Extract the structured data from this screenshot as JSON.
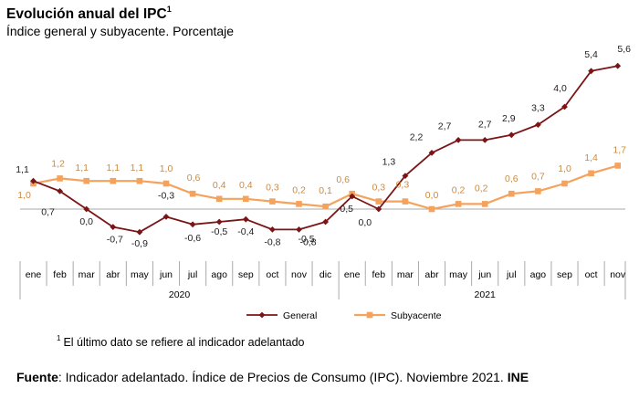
{
  "header": {
    "title": "Evolución anual del IPC",
    "title_sup": "1",
    "subtitle": "Índice general y subyacente. Porcentaje"
  },
  "footnote": {
    "sup": "1",
    "text": "El último dato se refiere al indicador adelantado"
  },
  "source": {
    "label": "Fuente",
    "text": ": Indicador adelantado. Índice de Precios de Consumo (IPC). Noviembre 2021. ",
    "org": "INE"
  },
  "chart_data": {
    "type": "line",
    "categories": [
      "ene",
      "feb",
      "mar",
      "abr",
      "may",
      "jun",
      "jul",
      "ago",
      "sep",
      "oct",
      "nov",
      "dic",
      "ene",
      "feb",
      "mar",
      "abr",
      "may",
      "jun",
      "jul",
      "ago",
      "sep",
      "oct",
      "nov"
    ],
    "years": [
      {
        "label": "2020",
        "start": 0,
        "end": 11
      },
      {
        "label": "2021",
        "start": 12,
        "end": 22
      }
    ],
    "series": [
      {
        "name": "General",
        "color": "#7b1416",
        "marker": "diamond",
        "values": [
          1.1,
          0.7,
          0.0,
          -0.7,
          -0.9,
          -0.3,
          -0.6,
          -0.5,
          -0.4,
          -0.8,
          -0.8,
          -0.5,
          0.5,
          0.0,
          1.3,
          2.2,
          2.7,
          2.7,
          2.9,
          3.3,
          4.0,
          5.4,
          5.6
        ],
        "labels": [
          "1,1",
          "0,7",
          "0,0",
          "-0,7",
          "-0,9",
          "-0,3",
          "-0,6",
          "-0,5",
          "-0,4",
          "-0,8",
          "-0,8",
          "-0,5",
          "0,5",
          "0,0",
          "1,3",
          "2,2",
          "2,7",
          "2,7",
          "2,9",
          "3,3",
          "4,0",
          "5,4",
          "5,6"
        ]
      },
      {
        "name": "Subyacente",
        "color": "#f5a25d",
        "marker": "square",
        "values": [
          1.0,
          1.2,
          1.1,
          1.1,
          1.1,
          1.0,
          0.6,
          0.4,
          0.4,
          0.3,
          0.2,
          0.1,
          0.6,
          0.3,
          0.3,
          0.0,
          0.2,
          0.2,
          0.6,
          0.7,
          1.0,
          1.4,
          1.7
        ],
        "labels": [
          "1,0",
          "1,2",
          "1,1",
          "1,1",
          "1,1",
          "1,0",
          "0,6",
          "0,4",
          "0,4",
          "0,3",
          "0,2",
          "0,1",
          "0,6",
          "0,3",
          "0,3",
          "0,0",
          "0,2",
          "0,2",
          "0,6",
          "0,7",
          "1,0",
          "1,4",
          "1,7"
        ]
      }
    ],
    "ylim": [
      -1.5,
      6.0
    ],
    "grid": false,
    "legend": "bottom-center"
  }
}
